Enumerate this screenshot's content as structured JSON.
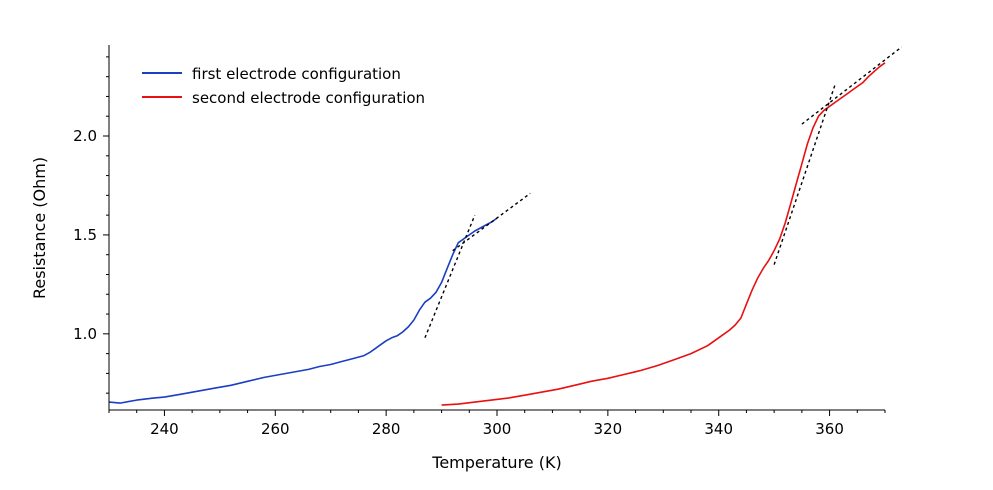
{
  "chart_data": {
    "type": "line",
    "xlabel": "Temperature (K)",
    "ylabel": "Resistance (Ohm)",
    "xlim": [
      230,
      370
    ],
    "ylim": [
      0.615,
      2.46
    ],
    "xticks": [
      240,
      260,
      280,
      300,
      320,
      340,
      360
    ],
    "yticks": [
      1.0,
      1.5,
      2.0
    ],
    "xtick_labels": [
      "240",
      "260",
      "280",
      "300",
      "320",
      "340",
      "360"
    ],
    "ytick_labels": [
      "1.0",
      "1.5",
      "2.0"
    ],
    "grid": false,
    "legend_position": "top-left",
    "series": [
      {
        "name": "first electrode configuration",
        "color": "#1a3fc4",
        "x": [
          230,
          232,
          235,
          238,
          240,
          243,
          246,
          249,
          252,
          255,
          258,
          261,
          264,
          266,
          268,
          270,
          272,
          274,
          276,
          277,
          278,
          279,
          280,
          281,
          282,
          283,
          284,
          285,
          286,
          287,
          288,
          289,
          290,
          291,
          292,
          293,
          294,
          295,
          296,
          297,
          298,
          299,
          300
        ],
        "y": [
          0.655,
          0.65,
          0.665,
          0.675,
          0.68,
          0.695,
          0.71,
          0.725,
          0.74,
          0.76,
          0.78,
          0.795,
          0.81,
          0.82,
          0.835,
          0.845,
          0.86,
          0.875,
          0.89,
          0.905,
          0.925,
          0.945,
          0.965,
          0.98,
          0.99,
          1.01,
          1.035,
          1.07,
          1.12,
          1.16,
          1.18,
          1.21,
          1.26,
          1.33,
          1.4,
          1.46,
          1.48,
          1.5,
          1.52,
          1.535,
          1.55,
          1.565,
          1.585
        ]
      },
      {
        "name": "second electrode configuration",
        "color": "#e81010",
        "x": [
          290,
          293,
          296,
          299,
          302,
          305,
          308,
          311,
          314,
          317,
          320,
          323,
          326,
          329,
          332,
          335,
          338,
          340,
          341,
          342,
          343,
          344,
          345,
          346,
          347,
          348,
          349,
          350,
          351,
          352,
          353,
          354,
          355,
          356,
          357,
          358,
          359,
          360,
          361,
          362,
          363,
          364,
          365,
          366,
          367,
          368,
          369,
          370
        ],
        "y": [
          0.64,
          0.645,
          0.655,
          0.665,
          0.675,
          0.69,
          0.705,
          0.72,
          0.74,
          0.76,
          0.775,
          0.795,
          0.815,
          0.84,
          0.87,
          0.9,
          0.94,
          0.98,
          1.0,
          1.02,
          1.045,
          1.08,
          1.15,
          1.22,
          1.28,
          1.33,
          1.37,
          1.42,
          1.48,
          1.56,
          1.66,
          1.76,
          1.86,
          1.96,
          2.04,
          2.1,
          2.13,
          2.15,
          2.17,
          2.19,
          2.21,
          2.23,
          2.25,
          2.27,
          2.3,
          2.325,
          2.35,
          2.37
        ]
      }
    ],
    "annotations": [
      {
        "style": "dashed",
        "color": "#000000",
        "x": [
          292,
          306
        ],
        "y": [
          1.42,
          1.71
        ]
      },
      {
        "style": "dashed",
        "color": "#000000",
        "x": [
          287,
          296
        ],
        "y": [
          0.98,
          1.6
        ]
      },
      {
        "style": "dashed",
        "color": "#000000",
        "x": [
          350,
          361
        ],
        "y": [
          1.35,
          2.26
        ]
      },
      {
        "style": "dashed",
        "color": "#000000",
        "x": [
          355,
          373
        ],
        "y": [
          2.06,
          2.45
        ]
      }
    ]
  }
}
